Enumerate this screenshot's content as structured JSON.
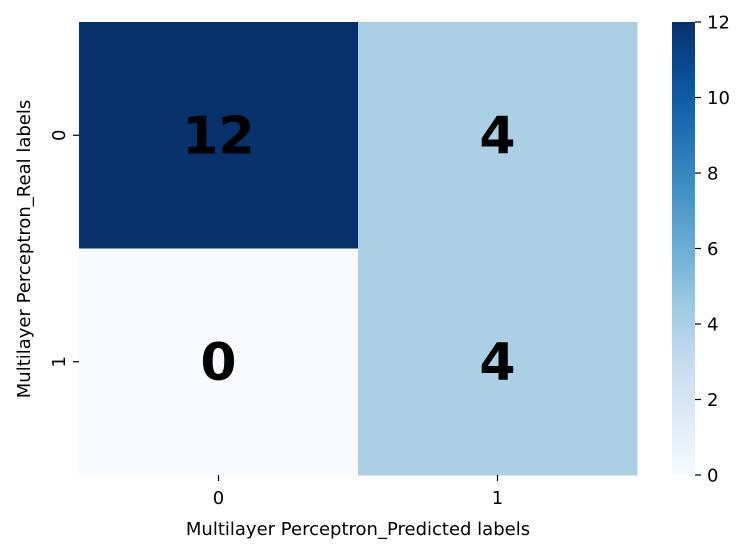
{
  "chart_data": {
    "type": "heatmap",
    "x_categories": [
      "0",
      "1"
    ],
    "y_categories": [
      "0",
      "1"
    ],
    "values": [
      [
        12,
        4
      ],
      [
        0,
        4
      ]
    ],
    "xlabel": "Multilayer Perceptron_Predicted labels",
    "ylabel": "Multilayer Perceptron_Real labels",
    "colormap": "Blues",
    "colorbar": {
      "range": [
        0,
        12
      ],
      "ticks": [
        0,
        2,
        4,
        6,
        8,
        10,
        12
      ]
    },
    "annotations": true
  }
}
